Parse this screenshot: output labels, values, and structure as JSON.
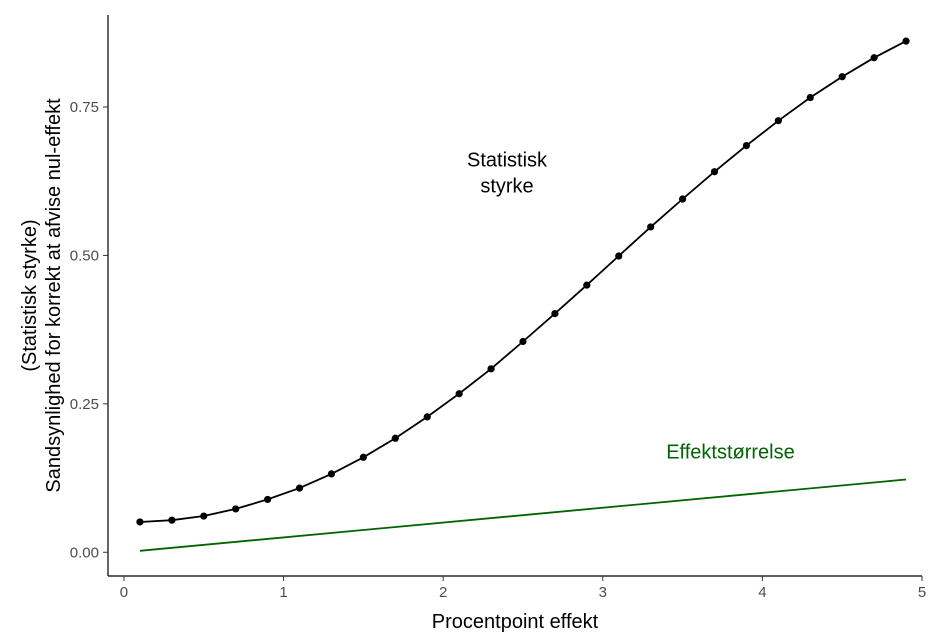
{
  "chart_data": {
    "type": "line",
    "xlabel": "Procentpoint effekt",
    "ylabel_lines": [
      "(Statistisk styrke)",
      "Sandsynlighed for korrekt at afvise nul-effekt"
    ],
    "xlim": [
      -0.1,
      5.0
    ],
    "ylim": [
      -0.04,
      0.905
    ],
    "x_ticks": [
      0,
      1,
      2,
      3,
      4,
      5
    ],
    "x_tick_labels": [
      "0",
      "1",
      "2",
      "3",
      "4",
      "5"
    ],
    "y_ticks": [
      0.0,
      0.25,
      0.5,
      0.75
    ],
    "y_tick_labels": [
      "0.00",
      "0.25",
      "0.50",
      "0.75"
    ],
    "grid": false,
    "legend": "none",
    "series": [
      {
        "color": "#000000",
        "markers": true,
        "x": [
          0.1,
          0.3,
          0.5,
          0.7,
          0.9,
          1.1,
          1.3,
          1.5,
          1.7,
          1.9,
          2.1,
          2.3,
          2.5,
          2.7,
          2.9,
          3.1,
          3.3,
          3.5,
          3.7,
          3.9,
          4.1,
          4.3,
          4.5,
          4.7,
          4.9
        ],
        "y": [
          0.051,
          0.054,
          0.061,
          0.073,
          0.089,
          0.108,
          0.132,
          0.16,
          0.192,
          0.228,
          0.267,
          0.309,
          0.355,
          0.402,
          0.45,
          0.499,
          0.548,
          0.595,
          0.641,
          0.685,
          0.727,
          0.766,
          0.801,
          0.833,
          0.861
        ]
      },
      {
        "color": "#006400",
        "markers": false,
        "x": [
          0.1,
          4.9
        ],
        "y": [
          0.0025,
          0.1225
        ]
      }
    ],
    "annotations": [
      {
        "lines": [
          "Statistisk",
          "styrke"
        ],
        "x": 2.4,
        "y": 0.64,
        "color": "#000000"
      },
      {
        "lines": [
          "Effektstørrelse"
        ],
        "x": 3.8,
        "y": 0.17,
        "color": "#006400"
      }
    ]
  }
}
